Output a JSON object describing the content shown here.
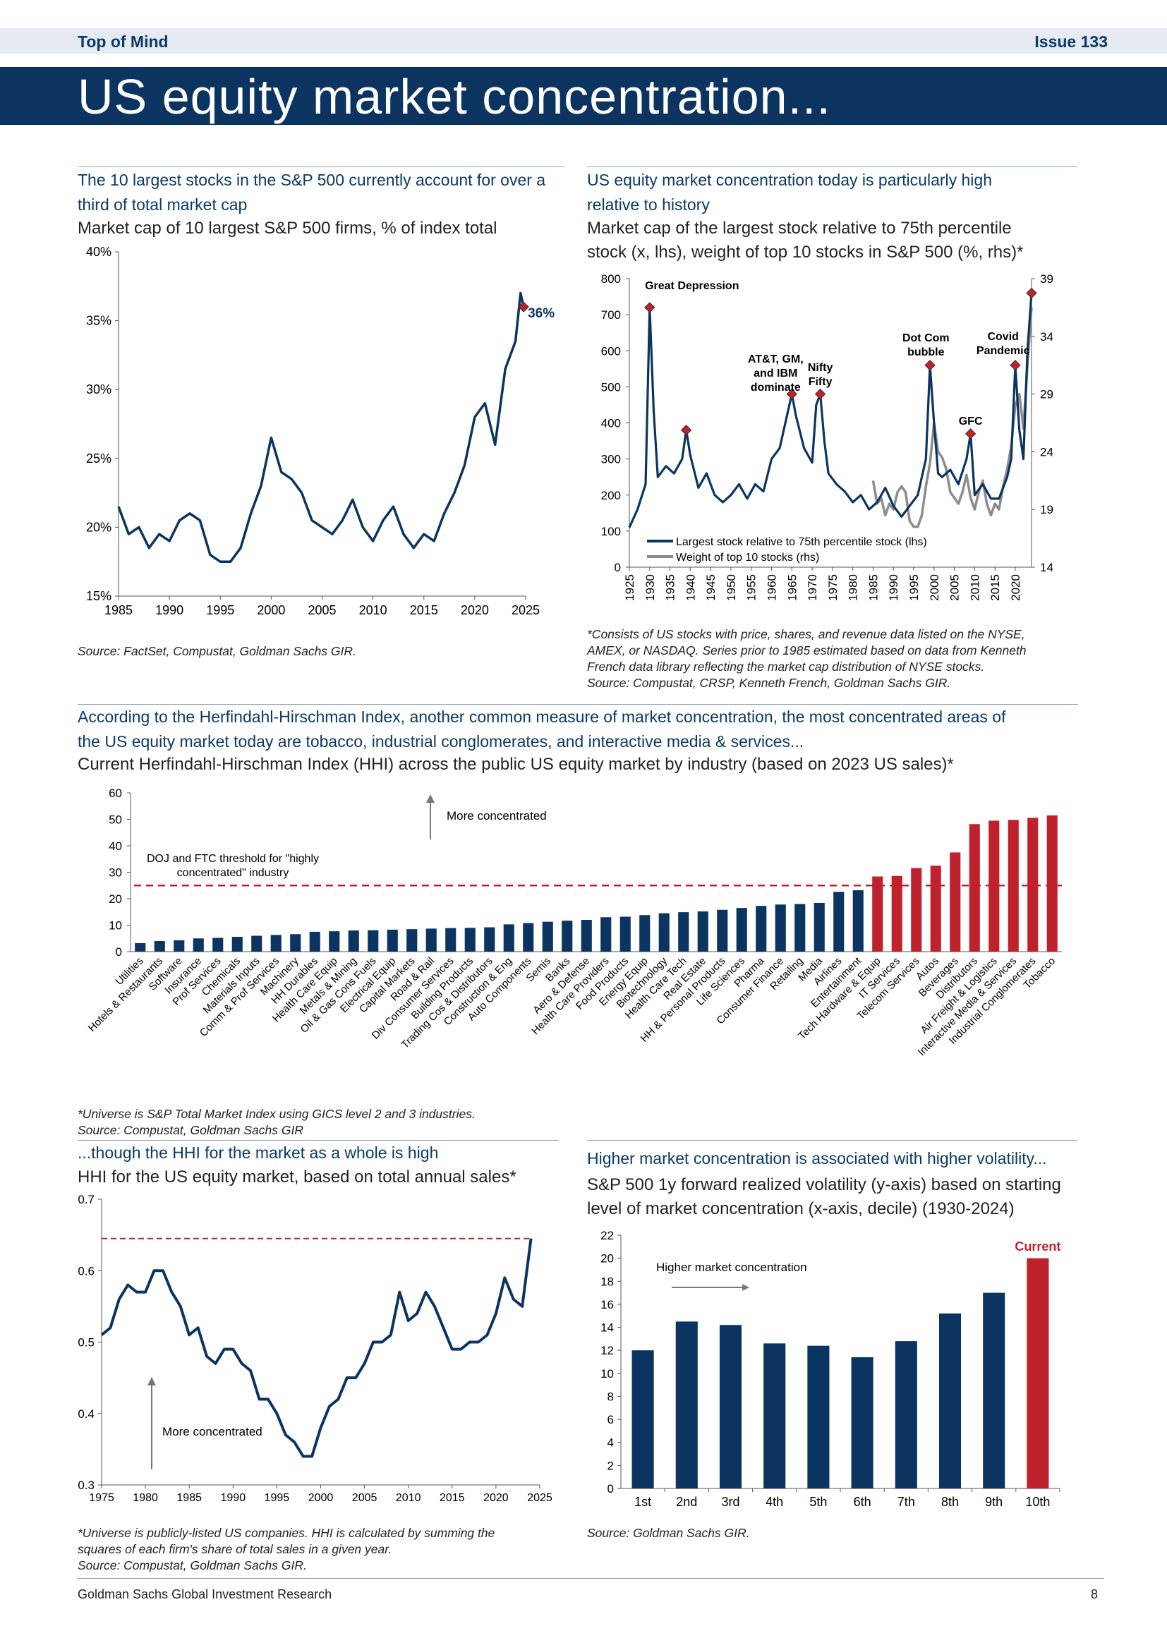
{
  "header": {
    "left_label": "Top of Mind",
    "issue_label": "Issue 133",
    "title": "US equity market concentration..."
  },
  "panels": {
    "p1": {
      "headline_line1": "The 10 largest stocks in the S&P 500 currently account for over a",
      "headline_line2": "third of total market cap",
      "subtitle": "Market cap of 10 largest S&P 500 firms, % of index total",
      "source": "Source: FactSet, Compustat, Goldman Sachs GIR."
    },
    "p2": {
      "headline_line1": "US equity market concentration today is particularly high",
      "headline_line2": "relative to history",
      "subtitle_line1": "Market cap of the largest stock relative to 75th percentile",
      "subtitle_line2": "stock (x, lhs), weight of top 10 stocks in S&P 500 (%, rhs)*",
      "note_line1": "*Consists of US stocks with price, shares, and revenue data listed on the NYSE,",
      "note_line2": "AMEX, or NASDAQ. Series prior to 1985 estimated based on data from Kenneth",
      "note_line3": "French data library reflecting the market cap distribution of NYSE stocks.",
      "note_line4": "Source: Compustat, CRSP, Kenneth French, Goldman Sachs GIR."
    },
    "p3": {
      "headline_line1": "According to the Herfindahl-Hirschman Index, another common measure of market concentration, the most concentrated areas of",
      "headline_line2": "the US equity market today are tobacco, industrial conglomerates, and interactive media & services...",
      "subtitle": "Current Herfindahl-Hirschman Index (HHI) across the public US equity market by industry (based on 2023 US sales)*",
      "note_line1": "*Universe is S&P Total Market Index using GICS level 2 and 3 industries.",
      "note_line2": "Source: Compustat, Goldman Sachs GIR"
    },
    "p4": {
      "headline": "...though the HHI for the market as a whole is high",
      "subtitle": "HHI for the US equity market, based on total annual sales*",
      "note_line1": "*Universe is publicly-listed US companies. HHI is calculated by summing the",
      "note_line2": "squares of each firm's share of total sales in a given year.",
      "note_line3": "Source: Compustat, Goldman Sachs GIR."
    },
    "p5": {
      "headline": "Higher market concentration is associated with higher volatility...",
      "subtitle_line1": "S&P 500 1y forward realized volatility (y-axis) based on starting",
      "subtitle_line2": "level of market concentration (x-axis, decile) (1930-2024)",
      "source": "Source: Goldman Sachs GIR."
    }
  },
  "footer": {
    "left": "Goldman Sachs Global Investment Research",
    "page": "8"
  },
  "colors": {
    "navy": "#0b3560",
    "red": "#c0222d",
    "gray": "#8c8c8c"
  },
  "chart_data": [
    {
      "type": "line",
      "id": "top10_share",
      "title": "Market cap of 10 largest S&P 500 firms, % of index total",
      "ylim": [
        15,
        40
      ],
      "yticks": [
        "15%",
        "20%",
        "25%",
        "30%",
        "35%",
        "40%"
      ],
      "xlim": [
        1985,
        2025
      ],
      "xticks": [
        "1985",
        "1990",
        "1995",
        "2000",
        "2005",
        "2010",
        "2015",
        "2020",
        "2025"
      ],
      "x": [
        1985,
        1986,
        1987,
        1988,
        1989,
        1990,
        1991,
        1992,
        1993,
        1994,
        1995,
        1996,
        1997,
        1998,
        1999,
        2000,
        2001,
        2002,
        2003,
        2004,
        2005,
        2006,
        2007,
        2008,
        2009,
        2010,
        2011,
        2012,
        2013,
        2014,
        2015,
        2016,
        2017,
        2018,
        2019,
        2020,
        2021,
        2022,
        2023,
        2024,
        2024.5,
        2024.8
      ],
      "values": [
        21.5,
        19.5,
        20,
        18.5,
        19.5,
        19,
        20.5,
        21,
        20.5,
        18,
        17.5,
        17.5,
        18.5,
        21,
        23,
        26.5,
        24,
        23.5,
        22.5,
        20.5,
        20,
        19.5,
        20.5,
        22,
        20,
        19,
        20.5,
        21.5,
        19.5,
        18.5,
        19.5,
        19,
        21,
        22.5,
        24.5,
        28,
        29,
        26,
        31.5,
        33.5,
        37,
        36
      ],
      "current_label": "36%"
    },
    {
      "type": "line",
      "id": "largest_vs_75th",
      "ylim_left": [
        0,
        800
      ],
      "yticks_left": [
        "0",
        "100",
        "200",
        "300",
        "400",
        "500",
        "600",
        "700",
        "800"
      ],
      "ylim_right": [
        14,
        39
      ],
      "yticks_right": [
        "14",
        "19",
        "24",
        "29",
        "34",
        "39"
      ],
      "xlim": [
        1925,
        2024
      ],
      "xticks": [
        "1925",
        "1930",
        "1935",
        "1940",
        "1945",
        "1950",
        "1955",
        "1960",
        "1965",
        "1970",
        "1975",
        "1980",
        "1985",
        "1990",
        "1995",
        "2000",
        "2005",
        "2010",
        "2015",
        "2020"
      ],
      "series": [
        {
          "name": "Largest stock relative to 75th percentile stock (lhs)",
          "x": [
            1925,
            1927,
            1929,
            1930,
            1931,
            1932,
            1934,
            1936,
            1938,
            1939,
            1940,
            1942,
            1944,
            1946,
            1948,
            1950,
            1952,
            1954,
            1956,
            1958,
            1960,
            1962,
            1964,
            1965,
            1966,
            1968,
            1970,
            1971,
            1972,
            1973,
            1974,
            1976,
            1978,
            1980,
            1982,
            1984,
            1986,
            1988,
            1990,
            1992,
            1994,
            1996,
            1998,
            1999,
            2000,
            2001,
            2002,
            2004,
            2006,
            2008,
            2009,
            2010,
            2012,
            2014,
            2016,
            2018,
            2019,
            2020,
            2021,
            2022,
            2023,
            2024
          ],
          "values": [
            110,
            160,
            230,
            720,
            430,
            250,
            280,
            260,
            300,
            380,
            310,
            220,
            260,
            200,
            180,
            200,
            230,
            190,
            230,
            210,
            300,
            330,
            430,
            480,
            420,
            330,
            290,
            450,
            480,
            350,
            260,
            230,
            210,
            180,
            200,
            160,
            180,
            220,
            170,
            140,
            170,
            200,
            300,
            560,
            400,
            260,
            250,
            270,
            230,
            300,
            370,
            200,
            230,
            190,
            190,
            250,
            300,
            560,
            380,
            300,
            600,
            760
          ]
        },
        {
          "name": "Weight of top 10 stocks (rhs)",
          "x": [
            1985,
            1986,
            1987,
            1988,
            1989,
            1990,
            1991,
            1992,
            1993,
            1994,
            1995,
            1996,
            1997,
            1998,
            1999,
            2000,
            2001,
            2002,
            2003,
            2004,
            2005,
            2006,
            2007,
            2008,
            2009,
            2010,
            2011,
            2012,
            2013,
            2014,
            2015,
            2016,
            2017,
            2018,
            2019,
            2020,
            2021,
            2022,
            2023,
            2024
          ],
          "values": [
            21.5,
            19.5,
            20,
            18.5,
            19.5,
            19,
            20.5,
            21,
            20.5,
            18,
            17.5,
            17.5,
            18.5,
            21,
            23,
            26.5,
            24,
            23.5,
            22.5,
            20.5,
            20,
            19.5,
            20.5,
            22,
            20,
            19,
            20.5,
            21.5,
            19.5,
            18.5,
            19.5,
            19,
            21,
            22.5,
            24.5,
            28,
            29,
            26,
            31.5,
            36.5
          ]
        }
      ],
      "annotations": [
        {
          "text": "Great Depression",
          "x": 1930,
          "y": 720
        },
        {
          "text": "AT&T, GM, and IBM dominate",
          "x": 1964,
          "y": 480
        },
        {
          "text": "Nifty Fifty",
          "x": 1972,
          "y": 480
        },
        {
          "text": "Dot Com bubble",
          "x": 1999,
          "y": 560
        },
        {
          "text": "Covid Pandemic",
          "x": 2020,
          "y": 560
        },
        {
          "text": "GFC",
          "x": 2009,
          "y": 370
        }
      ],
      "markers": [
        {
          "x": 1930,
          "y": 720
        },
        {
          "x": 1939,
          "y": 380
        },
        {
          "x": 1965,
          "y": 480
        },
        {
          "x": 1972,
          "y": 480
        },
        {
          "x": 1999,
          "y": 560
        },
        {
          "x": 2009,
          "y": 370
        },
        {
          "x": 2020,
          "y": 560
        },
        {
          "x": 2024,
          "y": 760
        }
      ]
    },
    {
      "type": "bar",
      "id": "hhi_by_industry",
      "ylim": [
        0,
        60
      ],
      "yticks": [
        "0",
        "10",
        "20",
        "30",
        "40",
        "50",
        "60"
      ],
      "threshold": 25,
      "threshold_label_line1": "DOJ and FTC threshold for \"highly",
      "threshold_label_line2": "concentrated\" industry",
      "arrow_label": "More concentrated",
      "categories": [
        "Utilities",
        "Hotels & Restaurants",
        "Software",
        "Insurance",
        "Prof Services",
        "Chemicals",
        "Materials Inputs",
        "Comm & Prof Services",
        "Machinery",
        "HH Durables",
        "Health Care Equip",
        "Metals & Mining",
        "Oil & Gas Cons Fuels",
        "Electrical Equip",
        "Capital Markets",
        "Road & Rail",
        "Div Consumer Services",
        "Building Products",
        "Trading Cos & Distributors",
        "Construction & Eng",
        "Auto Components",
        "Semis",
        "Banks",
        "Aero & Defense",
        "Health Care Providers",
        "Food Products",
        "Energy Equip",
        "Biotechnology",
        "Health Care Tech",
        "Real Estate",
        "HH & Personal Products",
        "Life Sciences",
        "Pharma",
        "Consumer Finance",
        "Retailing",
        "Media",
        "Airlines",
        "Entertainment",
        "Tech Hardware & Equip",
        "IT Services",
        "Telecom Services",
        "Autos",
        "Beverages",
        "Distributors",
        "Air Freight & Logistics",
        "Interactive Media & Services",
        "Industrial Conglomerates",
        "Tobacco"
      ],
      "values": [
        3.2,
        4,
        4.3,
        5,
        5.2,
        5.6,
        6,
        6.3,
        6.6,
        7.5,
        7.7,
        8,
        8.1,
        8.3,
        8.5,
        8.7,
        8.9,
        9,
        9.2,
        10.3,
        10.8,
        11.3,
        11.7,
        12,
        13,
        13.2,
        13.8,
        14.5,
        14.9,
        15.2,
        15.8,
        16.5,
        17.3,
        17.8,
        18,
        18.4,
        22.6,
        23.2,
        28.4,
        28.6,
        31.6,
        32.5,
        37.5,
        48.2,
        49.5,
        49.8,
        50.6,
        51.5
      ],
      "highlight_from_index": 38
    },
    {
      "type": "line",
      "id": "hhi_market",
      "ylim": [
        0.3,
        0.7
      ],
      "yticks": [
        "0.3",
        "0.4",
        "0.5",
        "0.6",
        "0.7"
      ],
      "xlim": [
        1975,
        2025
      ],
      "xticks": [
        "1975",
        "1980",
        "1985",
        "1990",
        "1995",
        "2000",
        "2005",
        "2010",
        "2015",
        "2020",
        "2025"
      ],
      "x": [
        1975,
        1976,
        1977,
        1978,
        1979,
        1980,
        1981,
        1982,
        1983,
        1984,
        1985,
        1986,
        1987,
        1988,
        1989,
        1990,
        1991,
        1992,
        1993,
        1994,
        1995,
        1996,
        1997,
        1998,
        1999,
        2000,
        2001,
        2002,
        2003,
        2004,
        2005,
        2006,
        2007,
        2008,
        2009,
        2010,
        2011,
        2012,
        2013,
        2014,
        2015,
        2016,
        2017,
        2018,
        2019,
        2020,
        2021,
        2022,
        2023,
        2024
      ],
      "values": [
        0.51,
        0.52,
        0.56,
        0.58,
        0.57,
        0.57,
        0.6,
        0.6,
        0.57,
        0.55,
        0.51,
        0.52,
        0.48,
        0.47,
        0.49,
        0.49,
        0.47,
        0.46,
        0.42,
        0.42,
        0.4,
        0.37,
        0.36,
        0.34,
        0.34,
        0.38,
        0.41,
        0.42,
        0.45,
        0.45,
        0.47,
        0.5,
        0.5,
        0.51,
        0.57,
        0.53,
        0.54,
        0.57,
        0.55,
        0.52,
        0.49,
        0.49,
        0.5,
        0.5,
        0.51,
        0.54,
        0.59,
        0.56,
        0.55,
        0.645
      ],
      "reference_level": 0.645,
      "arrow_label": "More concentrated"
    },
    {
      "type": "bar",
      "id": "vol_by_decile",
      "ylim": [
        0,
        22
      ],
      "yticks": [
        "0",
        "2",
        "4",
        "6",
        "8",
        "10",
        "12",
        "14",
        "16",
        "18",
        "20",
        "22"
      ],
      "categories": [
        "1st",
        "2nd",
        "3rd",
        "4th",
        "5th",
        "6th",
        "7th",
        "8th",
        "9th",
        "10th"
      ],
      "values": [
        12,
        14.5,
        14.2,
        12.6,
        12.4,
        11.4,
        12.8,
        15.2,
        17,
        20
      ],
      "arrow_label": "Higher market concentration",
      "current_label": "Current",
      "highlight_index": 9
    }
  ]
}
